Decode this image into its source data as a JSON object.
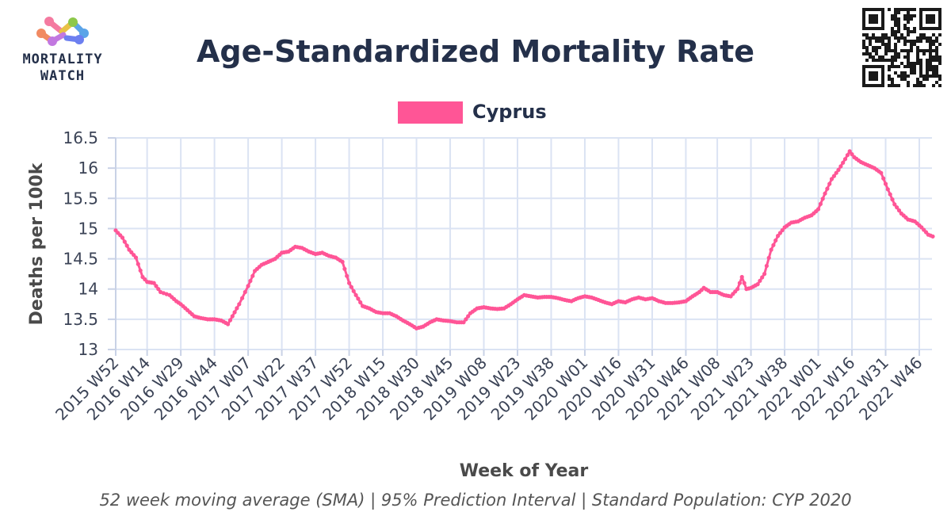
{
  "logo": {
    "line1": "MORTALITY",
    "line2": "WATCH"
  },
  "chart_data": {
    "type": "line",
    "title": "Age-Standardized Mortality Rate",
    "xlabel": "Week of Year",
    "ylabel": "Deaths per 100k",
    "caption": "52 week moving average (SMA) | 95% Prediction Interval | Standard Population: CYP 2020",
    "ylim": [
      13,
      16.5
    ],
    "yticks": [
      13,
      13.5,
      14,
      14.5,
      15,
      15.5,
      16,
      16.5
    ],
    "xticks": [
      "2015 W52",
      "2016 W14",
      "2016 W29",
      "2016 W44",
      "2017 W07",
      "2017 W22",
      "2017 W37",
      "2017 W52",
      "2018 W15",
      "2018 W30",
      "2018 W45",
      "2019 W08",
      "2019 W23",
      "2019 W38",
      "2020 W01",
      "2020 W16",
      "2020 W31",
      "2020 W46",
      "2021 W08",
      "2021 W23",
      "2021 W38",
      "2022 W01",
      "2022 W16",
      "2022 W31",
      "2022 W46"
    ],
    "grid": true,
    "legend_position": "top-center",
    "series": [
      {
        "name": "Cyprus",
        "color": "#ff5596",
        "points": [
          [
            "2015 W52",
            14.97
          ],
          [
            "2016 W03",
            14.85
          ],
          [
            "2016 W06",
            14.65
          ],
          [
            "2016 W09",
            14.52
          ],
          [
            "2016 W12",
            14.2
          ],
          [
            "2016 W14",
            14.12
          ],
          [
            "2016 W17",
            14.1
          ],
          [
            "2016 W20",
            13.95
          ],
          [
            "2016 W24",
            13.9
          ],
          [
            "2016 W27",
            13.8
          ],
          [
            "2016 W29",
            13.75
          ],
          [
            "2016 W32",
            13.65
          ],
          [
            "2016 W35",
            13.55
          ],
          [
            "2016 W38",
            13.52
          ],
          [
            "2016 W41",
            13.5
          ],
          [
            "2016 W44",
            13.5
          ],
          [
            "2016 W47",
            13.48
          ],
          [
            "2016 W50",
            13.42
          ],
          [
            "2016 W52",
            13.55
          ],
          [
            "2017 W03",
            13.75
          ],
          [
            "2017 W07",
            14.05
          ],
          [
            "2017 W10",
            14.3
          ],
          [
            "2017 W13",
            14.4
          ],
          [
            "2017 W16",
            14.45
          ],
          [
            "2017 W19",
            14.5
          ],
          [
            "2017 W22",
            14.6
          ],
          [
            "2017 W25",
            14.62
          ],
          [
            "2017 W28",
            14.7
          ],
          [
            "2017 W31",
            14.68
          ],
          [
            "2017 W34",
            14.62
          ],
          [
            "2017 W37",
            14.58
          ],
          [
            "2017 W40",
            14.6
          ],
          [
            "2017 W43",
            14.55
          ],
          [
            "2017 W46",
            14.52
          ],
          [
            "2017 W49",
            14.45
          ],
          [
            "2017 W52",
            14.1
          ],
          [
            "2018 W03",
            13.9
          ],
          [
            "2018 W06",
            13.72
          ],
          [
            "2018 W09",
            13.68
          ],
          [
            "2018 W12",
            13.62
          ],
          [
            "2018 W15",
            13.6
          ],
          [
            "2018 W18",
            13.6
          ],
          [
            "2018 W21",
            13.55
          ],
          [
            "2018 W24",
            13.48
          ],
          [
            "2018 W27",
            13.42
          ],
          [
            "2018 W30",
            13.35
          ],
          [
            "2018 W33",
            13.38
          ],
          [
            "2018 W36",
            13.45
          ],
          [
            "2018 W39",
            13.5
          ],
          [
            "2018 W42",
            13.48
          ],
          [
            "2018 W45",
            13.47
          ],
          [
            "2018 W48",
            13.45
          ],
          [
            "2018 W51",
            13.45
          ],
          [
            "2019 W02",
            13.6
          ],
          [
            "2019 W05",
            13.68
          ],
          [
            "2019 W08",
            13.7
          ],
          [
            "2019 W11",
            13.68
          ],
          [
            "2019 W14",
            13.67
          ],
          [
            "2019 W17",
            13.68
          ],
          [
            "2019 W20",
            13.75
          ],
          [
            "2019 W23",
            13.83
          ],
          [
            "2019 W26",
            13.9
          ],
          [
            "2019 W29",
            13.88
          ],
          [
            "2019 W32",
            13.86
          ],
          [
            "2019 W35",
            13.87
          ],
          [
            "2019 W38",
            13.87
          ],
          [
            "2019 W41",
            13.85
          ],
          [
            "2019 W44",
            13.82
          ],
          [
            "2019 W47",
            13.8
          ],
          [
            "2019 W50",
            13.85
          ],
          [
            "2020 W01",
            13.88
          ],
          [
            "2020 W04",
            13.86
          ],
          [
            "2020 W07",
            13.82
          ],
          [
            "2020 W10",
            13.78
          ],
          [
            "2020 W13",
            13.75
          ],
          [
            "2020 W16",
            13.8
          ],
          [
            "2020 W19",
            13.78
          ],
          [
            "2020 W22",
            13.83
          ],
          [
            "2020 W25",
            13.86
          ],
          [
            "2020 W28",
            13.83
          ],
          [
            "2020 W31",
            13.85
          ],
          [
            "2020 W34",
            13.8
          ],
          [
            "2020 W37",
            13.77
          ],
          [
            "2020 W40",
            13.77
          ],
          [
            "2020 W43",
            13.78
          ],
          [
            "2020 W46",
            13.8
          ],
          [
            "2020 W49",
            13.88
          ],
          [
            "2020 W52",
            13.95
          ],
          [
            "2021 W02",
            14.02
          ],
          [
            "2021 W05",
            13.95
          ],
          [
            "2021 W08",
            13.95
          ],
          [
            "2021 W11",
            13.9
          ],
          [
            "2021 W14",
            13.88
          ],
          [
            "2021 W17",
            14.0
          ],
          [
            "2021 W19",
            14.2
          ],
          [
            "2021 W21",
            14.0
          ],
          [
            "2021 W23",
            14.02
          ],
          [
            "2021 W26",
            14.08
          ],
          [
            "2021 W29",
            14.25
          ],
          [
            "2021 W32",
            14.65
          ],
          [
            "2021 W35",
            14.88
          ],
          [
            "2021 W38",
            15.02
          ],
          [
            "2021 W41",
            15.1
          ],
          [
            "2021 W44",
            15.12
          ],
          [
            "2021 W47",
            15.18
          ],
          [
            "2021 W50",
            15.22
          ],
          [
            "2022 W01",
            15.32
          ],
          [
            "2022 W04",
            15.58
          ],
          [
            "2022 W07",
            15.82
          ],
          [
            "2022 W10",
            15.97
          ],
          [
            "2022 W13",
            16.15
          ],
          [
            "2022 W15",
            16.28
          ],
          [
            "2022 W17",
            16.18
          ],
          [
            "2022 W20",
            16.1
          ],
          [
            "2022 W23",
            16.05
          ],
          [
            "2022 W26",
            16.0
          ],
          [
            "2022 W29",
            15.92
          ],
          [
            "2022 W32",
            15.65
          ],
          [
            "2022 W35",
            15.4
          ],
          [
            "2022 W38",
            15.25
          ],
          [
            "2022 W41",
            15.15
          ],
          [
            "2022 W44",
            15.12
          ],
          [
            "2022 W47",
            15.02
          ],
          [
            "2022 W50",
            14.9
          ],
          [
            "2022 W52",
            14.87
          ]
        ]
      }
    ]
  }
}
